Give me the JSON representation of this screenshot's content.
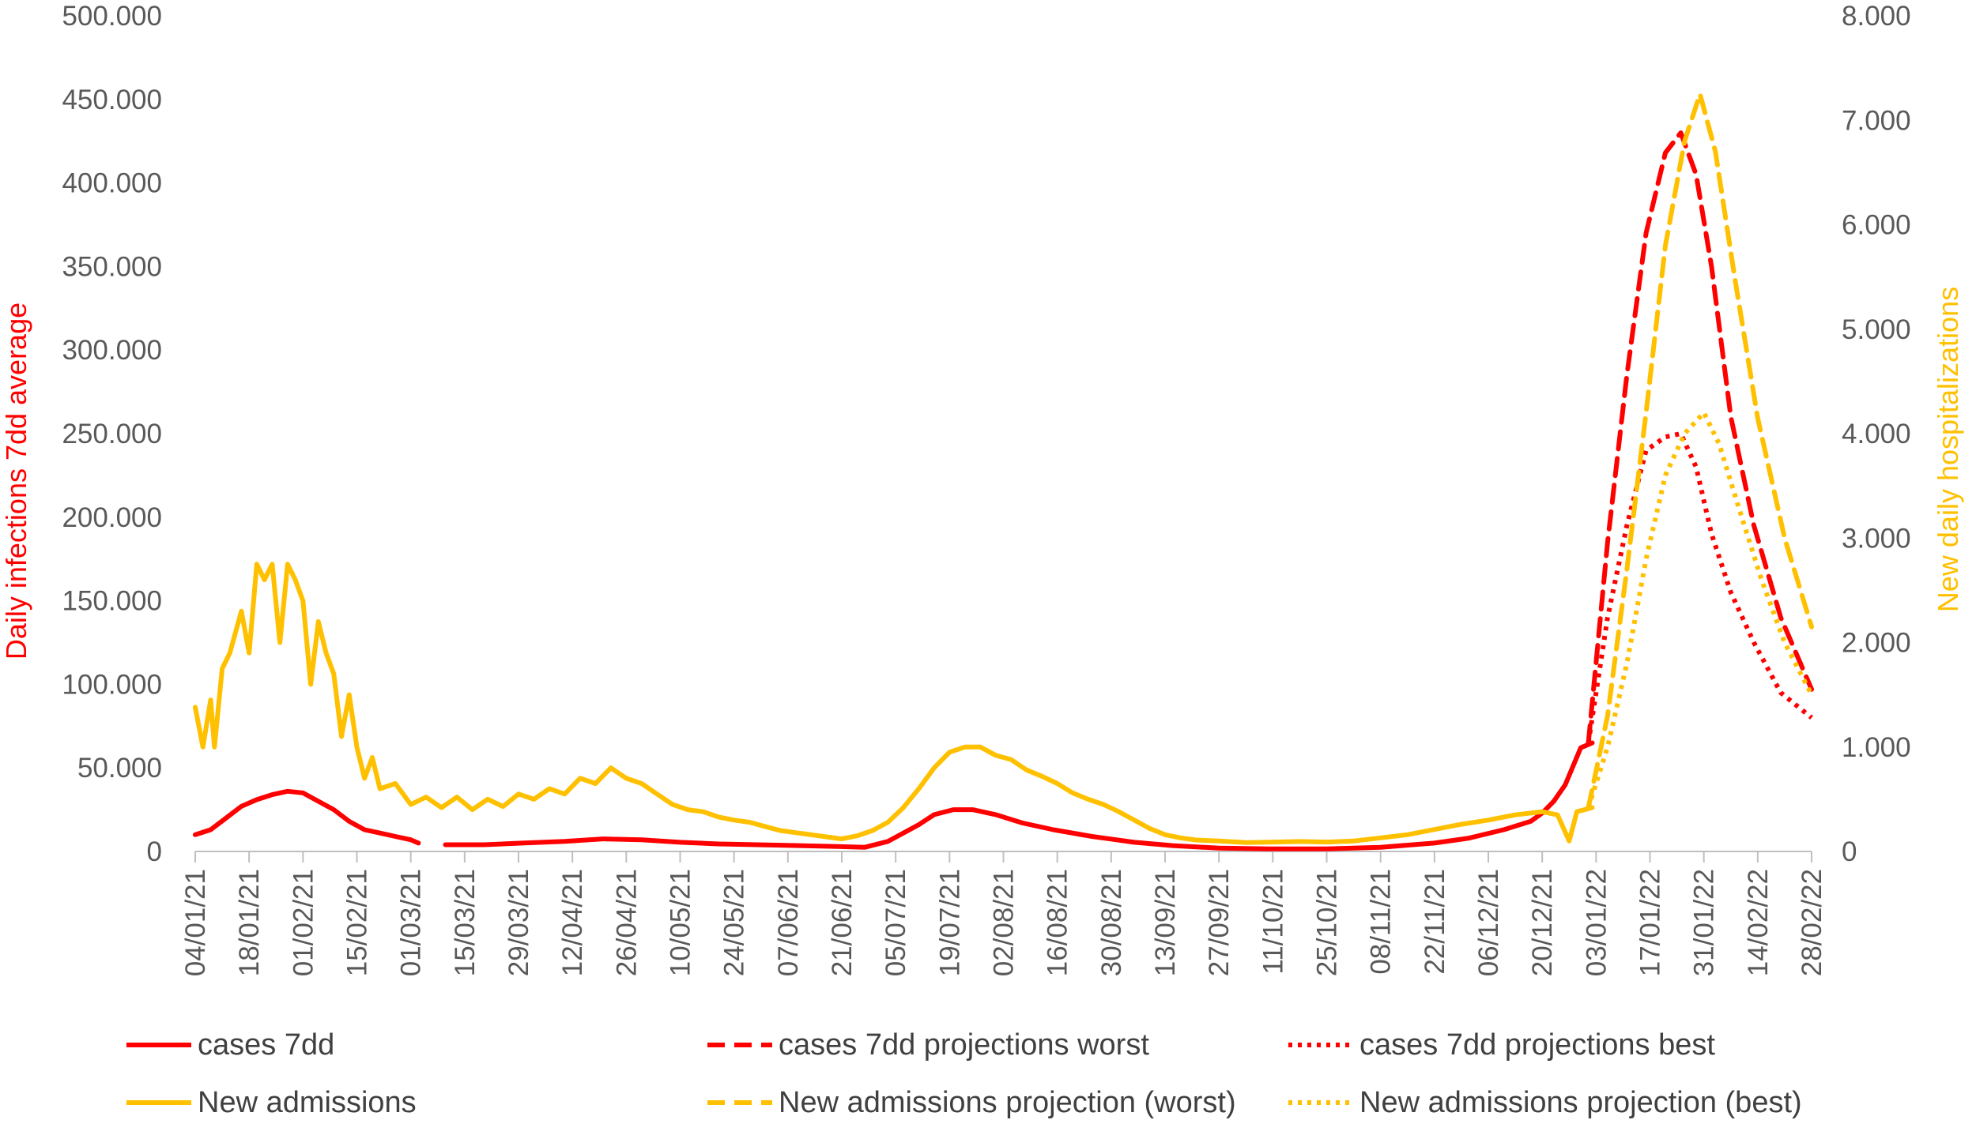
{
  "chart_data": {
    "type": "line",
    "title": "",
    "y_left": {
      "label": "Daily infections 7dd average",
      "range": [
        0,
        500000
      ],
      "ticks": [
        "0",
        "50.000",
        "100.000",
        "150.000",
        "200.000",
        "250.000",
        "300.000",
        "350.000",
        "400.000",
        "450.000",
        "500.000"
      ],
      "color": "#ff0000"
    },
    "y_right": {
      "label": "New daily hospitalizations",
      "range": [
        0,
        8000
      ],
      "ticks": [
        "0",
        "1.000",
        "2.000",
        "3.000",
        "4.000",
        "5.000",
        "6.000",
        "7.000",
        "8.000"
      ],
      "color": "#ffc000"
    },
    "x_axis": {
      "range": [
        "2021-01-04",
        "2022-02-28"
      ],
      "ticks": [
        "04/01/21",
        "18/01/21",
        "01/02/21",
        "15/02/21",
        "01/03/21",
        "15/03/21",
        "29/03/21",
        "12/04/21",
        "26/04/21",
        "10/05/21",
        "24/05/21",
        "07/06/21",
        "21/06/21",
        "05/07/21",
        "19/07/21",
        "02/08/21",
        "16/08/21",
        "30/08/21",
        "13/09/21",
        "27/09/21",
        "11/10/21",
        "25/10/21",
        "08/11/21",
        "22/11/21",
        "06/12/21",
        "20/12/21",
        "03/01/22",
        "17/01/22",
        "31/01/22",
        "14/02/22",
        "28/02/22"
      ]
    },
    "grid": false,
    "legend_position": "bottom",
    "series": [
      {
        "name": "cases 7dd",
        "axis": "left",
        "color": "#ff0000",
        "style": "solid",
        "points": [
          [
            "2021-01-04",
            10000
          ],
          [
            "2021-01-08",
            13000
          ],
          [
            "2021-01-12",
            20000
          ],
          [
            "2021-01-16",
            27000
          ],
          [
            "2021-01-20",
            31000
          ],
          [
            "2021-01-24",
            34000
          ],
          [
            "2021-01-28",
            36000
          ],
          [
            "2021-02-01",
            35000
          ],
          [
            "2021-02-05",
            30000
          ],
          [
            "2021-02-09",
            25000
          ],
          [
            "2021-02-13",
            18000
          ],
          [
            "2021-02-17",
            13000
          ],
          [
            "2021-02-21",
            11000
          ],
          [
            "2021-02-25",
            9000
          ],
          [
            "2021-03-01",
            7000
          ],
          [
            "2021-03-03",
            5000
          ]
        ]
      },
      {
        "name": "cases 7dd",
        "axis": "left",
        "color": "#ff0000",
        "style": "solid",
        "points": [
          [
            "2021-03-10",
            4000
          ],
          [
            "2021-03-20",
            4000
          ],
          [
            "2021-03-30",
            5000
          ],
          [
            "2021-04-10",
            6000
          ],
          [
            "2021-04-20",
            7500
          ],
          [
            "2021-04-30",
            7000
          ],
          [
            "2021-05-10",
            5500
          ],
          [
            "2021-05-20",
            4500
          ],
          [
            "2021-05-30",
            4000
          ],
          [
            "2021-06-10",
            3500
          ],
          [
            "2021-06-20",
            3000
          ],
          [
            "2021-06-27",
            2500
          ],
          [
            "2021-07-03",
            6000
          ],
          [
            "2021-07-07",
            11000
          ],
          [
            "2021-07-11",
            16000
          ],
          [
            "2021-07-15",
            22000
          ],
          [
            "2021-07-20",
            25000
          ],
          [
            "2021-07-25",
            25000
          ],
          [
            "2021-07-31",
            22000
          ],
          [
            "2021-08-07",
            17000
          ],
          [
            "2021-08-15",
            13000
          ],
          [
            "2021-08-25",
            9000
          ],
          [
            "2021-09-05",
            5500
          ],
          [
            "2021-09-15",
            3500
          ],
          [
            "2021-09-27",
            2000
          ],
          [
            "2021-10-10",
            1500
          ],
          [
            "2021-10-25",
            1500
          ],
          [
            "2021-11-08",
            2500
          ],
          [
            "2021-11-22",
            5000
          ],
          [
            "2021-12-01",
            8000
          ],
          [
            "2021-12-10",
            13000
          ],
          [
            "2021-12-17",
            18000
          ],
          [
            "2021-12-20",
            23000
          ],
          [
            "2021-12-23",
            30000
          ],
          [
            "2021-12-26",
            40000
          ],
          [
            "2021-12-30",
            62000
          ],
          [
            "2022-01-02",
            65000
          ]
        ]
      },
      {
        "name": "cases 7dd projections worst",
        "axis": "left",
        "color": "#ff0000",
        "style": "dashed",
        "points": [
          [
            "2022-01-01",
            65000
          ],
          [
            "2022-01-06",
            185000
          ],
          [
            "2022-01-11",
            285000
          ],
          [
            "2022-01-16",
            370000
          ],
          [
            "2022-01-21",
            418000
          ],
          [
            "2022-01-25",
            430000
          ],
          [
            "2022-01-29",
            405000
          ],
          [
            "2022-02-02",
            350000
          ],
          [
            "2022-02-07",
            260000
          ],
          [
            "2022-02-13",
            195000
          ],
          [
            "2022-02-20",
            140000
          ],
          [
            "2022-02-28",
            97000
          ]
        ]
      },
      {
        "name": "cases 7dd projections best",
        "axis": "left",
        "color": "#ff0000",
        "style": "dotted",
        "points": [
          [
            "2022-01-01",
            65000
          ],
          [
            "2022-01-06",
            140000
          ],
          [
            "2022-01-11",
            195000
          ],
          [
            "2022-01-16",
            240000
          ],
          [
            "2022-01-21",
            248000
          ],
          [
            "2022-01-25",
            250000
          ],
          [
            "2022-01-29",
            230000
          ],
          [
            "2022-02-02",
            190000
          ],
          [
            "2022-02-07",
            155000
          ],
          [
            "2022-02-13",
            125000
          ],
          [
            "2022-02-20",
            95000
          ],
          [
            "2022-02-28",
            80000
          ]
        ]
      },
      {
        "name": "New admissions",
        "axis": "right",
        "color": "#ffc000",
        "style": "solid",
        "points": [
          [
            "2021-01-04",
            1380
          ],
          [
            "2021-01-06",
            1000
          ],
          [
            "2021-01-08",
            1450
          ],
          [
            "2021-01-09",
            1000
          ],
          [
            "2021-01-11",
            1750
          ],
          [
            "2021-01-13",
            1900
          ],
          [
            "2021-01-16",
            2300
          ],
          [
            "2021-01-18",
            1900
          ],
          [
            "2021-01-20",
            2750
          ],
          [
            "2021-01-22",
            2600
          ],
          [
            "2021-01-24",
            2750
          ],
          [
            "2021-01-26",
            2000
          ],
          [
            "2021-01-28",
            2750
          ],
          [
            "2021-01-30",
            2600
          ],
          [
            "2021-02-01",
            2400
          ],
          [
            "2021-02-03",
            1600
          ],
          [
            "2021-02-05",
            2200
          ],
          [
            "2021-02-07",
            1900
          ],
          [
            "2021-02-09",
            1700
          ],
          [
            "2021-02-11",
            1100
          ],
          [
            "2021-02-13",
            1500
          ],
          [
            "2021-02-15",
            1000
          ],
          [
            "2021-02-17",
            700
          ],
          [
            "2021-02-19",
            900
          ],
          [
            "2021-02-21",
            600
          ],
          [
            "2021-02-25",
            650
          ],
          [
            "2021-03-01",
            450
          ],
          [
            "2021-03-05",
            520
          ],
          [
            "2021-03-09",
            420
          ],
          [
            "2021-03-13",
            520
          ],
          [
            "2021-03-17",
            400
          ],
          [
            "2021-03-21",
            500
          ],
          [
            "2021-03-25",
            430
          ],
          [
            "2021-03-29",
            550
          ],
          [
            "2021-04-02",
            500
          ],
          [
            "2021-04-06",
            600
          ],
          [
            "2021-04-10",
            550
          ],
          [
            "2021-04-14",
            700
          ],
          [
            "2021-04-18",
            650
          ],
          [
            "2021-04-22",
            800
          ],
          [
            "2021-04-26",
            700
          ],
          [
            "2021-04-30",
            650
          ],
          [
            "2021-05-04",
            550
          ],
          [
            "2021-05-08",
            450
          ],
          [
            "2021-05-12",
            400
          ],
          [
            "2021-05-16",
            380
          ],
          [
            "2021-05-20",
            330
          ],
          [
            "2021-05-24",
            300
          ],
          [
            "2021-05-28",
            280
          ],
          [
            "2021-06-01",
            240
          ],
          [
            "2021-06-05",
            200
          ],
          [
            "2021-06-09",
            180
          ],
          [
            "2021-06-13",
            160
          ],
          [
            "2021-06-17",
            140
          ],
          [
            "2021-06-21",
            120
          ],
          [
            "2021-06-25",
            150
          ],
          [
            "2021-06-29",
            200
          ],
          [
            "2021-07-03",
            280
          ],
          [
            "2021-07-07",
            420
          ],
          [
            "2021-07-11",
            600
          ],
          [
            "2021-07-15",
            800
          ],
          [
            "2021-07-19",
            950
          ],
          [
            "2021-07-23",
            1000
          ],
          [
            "2021-07-27",
            1000
          ],
          [
            "2021-07-31",
            920
          ],
          [
            "2021-08-04",
            880
          ],
          [
            "2021-08-08",
            780
          ],
          [
            "2021-08-12",
            720
          ],
          [
            "2021-08-16",
            650
          ],
          [
            "2021-08-20",
            560
          ],
          [
            "2021-08-24",
            500
          ],
          [
            "2021-08-28",
            450
          ],
          [
            "2021-09-01",
            380
          ],
          [
            "2021-09-05",
            300
          ],
          [
            "2021-09-09",
            220
          ],
          [
            "2021-09-13",
            160
          ],
          [
            "2021-09-17",
            130
          ],
          [
            "2021-09-21",
            110
          ],
          [
            "2021-09-27",
            100
          ],
          [
            "2021-10-04",
            85
          ],
          [
            "2021-10-11",
            90
          ],
          [
            "2021-10-18",
            95
          ],
          [
            "2021-10-25",
            90
          ],
          [
            "2021-11-01",
            100
          ],
          [
            "2021-11-08",
            130
          ],
          [
            "2021-11-15",
            160
          ],
          [
            "2021-11-22",
            210
          ],
          [
            "2021-11-29",
            260
          ],
          [
            "2021-12-06",
            300
          ],
          [
            "2021-12-13",
            350
          ],
          [
            "2021-12-20",
            380
          ],
          [
            "2021-12-24",
            350
          ],
          [
            "2021-12-27",
            100
          ],
          [
            "2021-12-29",
            380
          ],
          [
            "2022-01-02",
            420
          ]
        ]
      },
      {
        "name": "New admissions projection (worst)",
        "axis": "right",
        "color": "#ffc000",
        "style": "dashed",
        "points": [
          [
            "2022-01-01",
            420
          ],
          [
            "2022-01-06",
            1300
          ],
          [
            "2022-01-11",
            2700
          ],
          [
            "2022-01-16",
            4200
          ],
          [
            "2022-01-21",
            5800
          ],
          [
            "2022-01-26",
            6800
          ],
          [
            "2022-01-30",
            7250
          ],
          [
            "2022-02-03",
            6700
          ],
          [
            "2022-02-08",
            5500
          ],
          [
            "2022-02-14",
            4150
          ],
          [
            "2022-02-21",
            3000
          ],
          [
            "2022-02-28",
            2150
          ]
        ]
      },
      {
        "name": "New admissions projection (best)",
        "axis": "right",
        "color": "#ffc000",
        "style": "dotted",
        "points": [
          [
            "2022-01-01",
            420
          ],
          [
            "2022-01-06",
            1000
          ],
          [
            "2022-01-11",
            1800
          ],
          [
            "2022-01-16",
            2800
          ],
          [
            "2022-01-21",
            3600
          ],
          [
            "2022-01-26",
            4000
          ],
          [
            "2022-01-31",
            4200
          ],
          [
            "2022-02-04",
            3900
          ],
          [
            "2022-02-09",
            3300
          ],
          [
            "2022-02-15",
            2600
          ],
          [
            "2022-02-21",
            2000
          ],
          [
            "2022-02-28",
            1500
          ]
        ]
      }
    ]
  },
  "legend": [
    {
      "label": "cases 7dd",
      "color": "#ff0000",
      "style": "solid"
    },
    {
      "label": "cases 7dd projections worst",
      "color": "#ff0000",
      "style": "dashed"
    },
    {
      "label": "cases 7dd projections best",
      "color": "#ff0000",
      "style": "dotted"
    },
    {
      "label": "New admissions",
      "color": "#ffc000",
      "style": "solid"
    },
    {
      "label": "New admissions projection (worst)",
      "color": "#ffc000",
      "style": "dashed"
    },
    {
      "label": "New admissions projection (best)",
      "color": "#ffc000",
      "style": "dotted"
    }
  ]
}
